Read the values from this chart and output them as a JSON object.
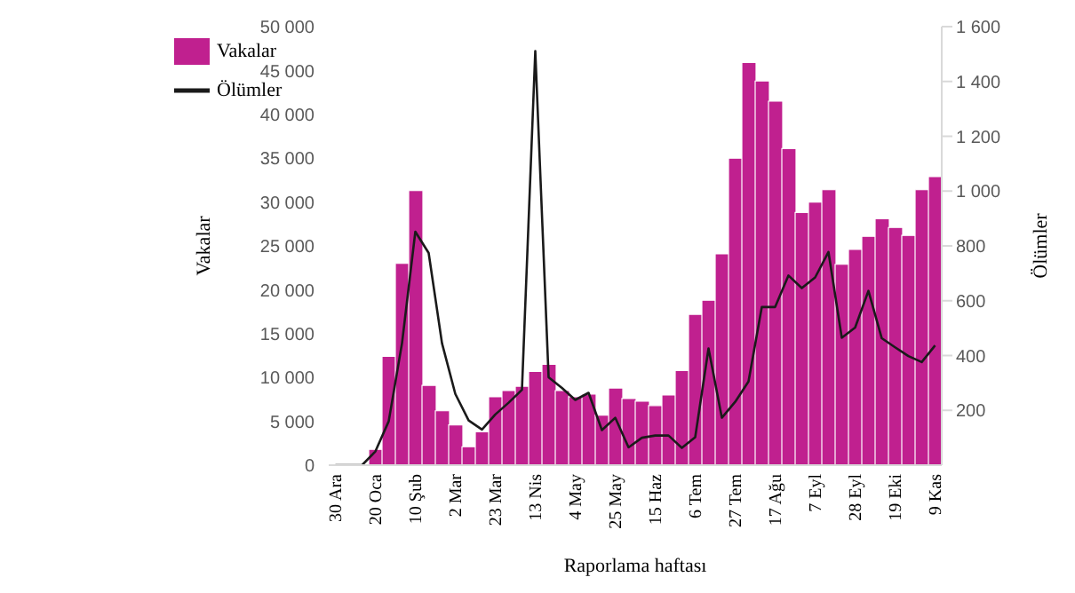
{
  "chart_data": {
    "type": "bar",
    "xlabel": "Raporlama haftası",
    "ylabel": "Vakalar",
    "y2label": "Ölümler",
    "categories": [
      "30 Ara",
      null,
      null,
      "20 Oca",
      null,
      null,
      "10 Şub",
      null,
      null,
      "2 Mar",
      null,
      null,
      "23 Mar",
      null,
      null,
      "13 Nis",
      null,
      null,
      "4 May",
      null,
      null,
      "25 May",
      null,
      null,
      "15 Haz",
      null,
      null,
      "6 Tem",
      null,
      null,
      "27 Tem",
      null,
      null,
      "17 Ağu",
      null,
      null,
      "7 Eyl",
      null,
      null,
      "28 Eyl",
      null,
      null,
      "19 Eki",
      null,
      null,
      "9 Kas"
    ],
    "series": [
      {
        "name": "Vakalar",
        "color": "#c0208f",
        "values": [
          null,
          null,
          null,
          1800,
          12400,
          23000,
          31300,
          9100,
          6200,
          4600,
          2100,
          3800,
          7800,
          8500,
          9000,
          10700,
          11500,
          8500,
          7800,
          8100,
          5700,
          8800,
          7600,
          7300,
          6800,
          8000,
          10800,
          17200,
          18800,
          24100,
          35000,
          45900,
          43800,
          41500,
          36100,
          28800,
          30000,
          31400,
          22900,
          24600,
          26100,
          28100,
          27100,
          26200,
          31400,
          32900
        ]
      },
      {
        "name": "Ölümler",
        "type": "line",
        "axis": "y2",
        "color": "#1a1a1a",
        "values": [
          0,
          0,
          0,
          50,
          160,
          445,
          852,
          774,
          445,
          260,
          163,
          130,
          185,
          228,
          275,
          1511,
          321,
          282,
          238,
          264,
          128,
          173,
          65,
          100,
          108,
          108,
          63,
          102,
          426,
          173,
          231,
          305,
          577,
          577,
          692,
          646,
          685,
          778,
          465,
          502,
          636,
          463,
          430,
          398,
          376,
          437
        ]
      }
    ],
    "ylim": [
      0,
      50000
    ],
    "yticks": [
      0,
      {
        "value": 5000,
        "label": "5 000"
      },
      {
        "value": 10000,
        "label": "10 000"
      },
      {
        "value": 15000,
        "label": "15 000"
      },
      {
        "value": 20000,
        "label": "20 000"
      },
      {
        "value": 25000,
        "label": "25 000"
      },
      {
        "value": 30000,
        "label": "30 000"
      },
      {
        "value": 35000,
        "label": "35 000"
      },
      {
        "value": 40000,
        "label": "40 000"
      },
      {
        "value": 45000,
        "label": "45 000"
      },
      {
        "value": 50000,
        "label": "50 000"
      }
    ],
    "y2lim": [
      0,
      1600
    ],
    "y2ticks": [
      200,
      400,
      600,
      800,
      {
        "value": 1000,
        "label": "1 000"
      },
      {
        "value": 1200,
        "label": "1 200"
      },
      {
        "value": 1400,
        "label": "1 400"
      },
      {
        "value": 1600,
        "label": "1 600"
      }
    ],
    "legend": "top left",
    "marker": "none"
  }
}
